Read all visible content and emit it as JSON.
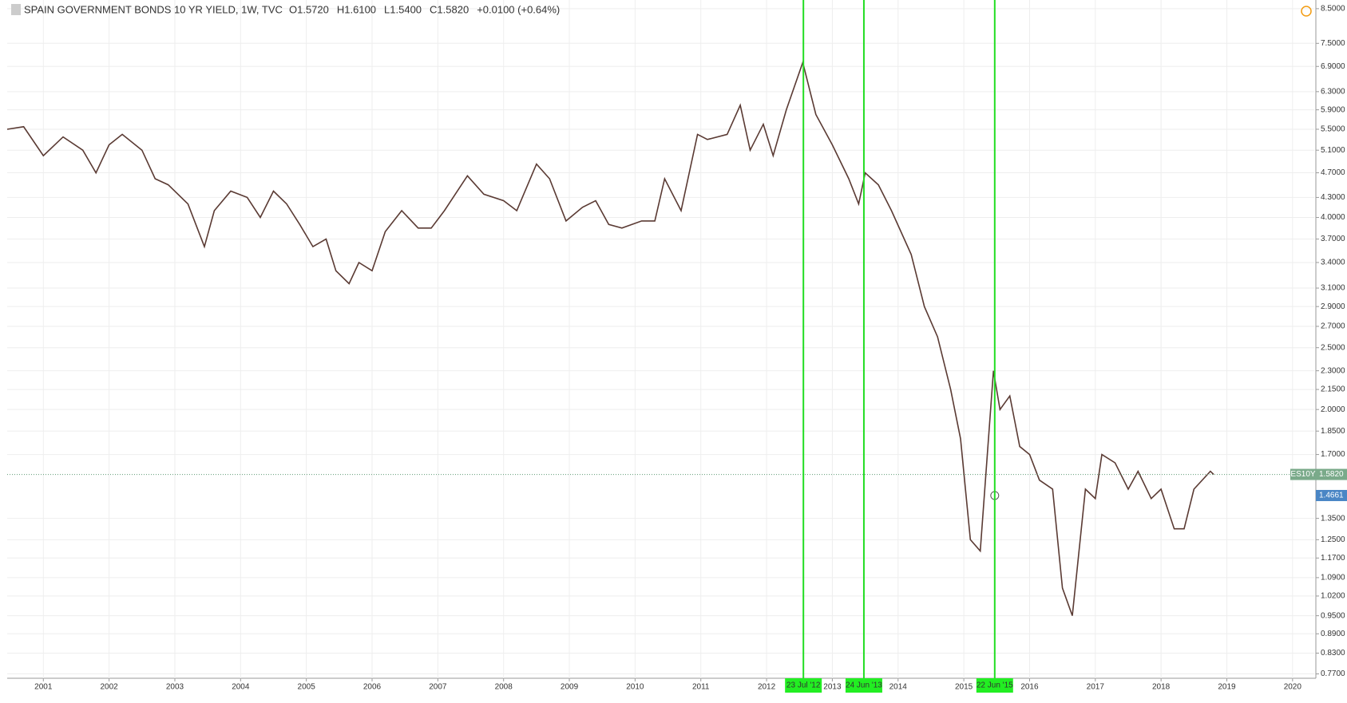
{
  "chart_data": {
    "type": "line",
    "title": "SPAIN GOVERNMENT BONDS 10 YR YIELD, 1W, TVC",
    "ohlc": [
      "O1.5720",
      "H1.6100",
      "L1.5400",
      "C1.5820",
      "+0.0100 (+0.64%)"
    ],
    "log_scale": true,
    "grid": true,
    "x": [
      2000.45,
      2000.7,
      2001.0,
      2001.3,
      2001.6,
      2001.8,
      2002.0,
      2002.2,
      2002.5,
      2002.7,
      2002.9,
      2003.2,
      2003.45,
      2003.6,
      2003.85,
      2004.1,
      2004.3,
      2004.5,
      2004.7,
      2004.9,
      2005.1,
      2005.3,
      2005.45,
      2005.65,
      2005.8,
      2006.0,
      2006.2,
      2006.45,
      2006.7,
      2006.9,
      2007.1,
      2007.45,
      2007.7,
      2008.0,
      2008.2,
      2008.5,
      2008.7,
      2008.95,
      2009.2,
      2009.4,
      2009.6,
      2009.8,
      2010.1,
      2010.3,
      2010.45,
      2010.7,
      2010.95,
      2011.1,
      2011.4,
      2011.6,
      2011.75,
      2011.95,
      2012.1,
      2012.3,
      2012.55,
      2012.75,
      2013.0,
      2013.25,
      2013.4,
      2013.5,
      2013.7,
      2013.9,
      2014.2,
      2014.4,
      2014.6,
      2014.8,
      2014.95,
      2015.1,
      2015.25,
      2015.45,
      2015.55,
      2015.7,
      2015.85,
      2016.0,
      2016.15,
      2016.35,
      2016.5,
      2016.65,
      2016.85,
      2017.0,
      2017.1,
      2017.3,
      2017.5,
      2017.65,
      2017.85,
      2018.0,
      2018.2,
      2018.35,
      2018.5,
      2018.75,
      2018.8
    ],
    "series": [
      {
        "name": "ES10Y",
        "color": "#5a3a33",
        "values": [
          5.5,
          5.55,
          5.0,
          5.35,
          5.1,
          4.7,
          5.2,
          5.4,
          5.1,
          4.6,
          4.5,
          4.2,
          3.6,
          4.1,
          4.4,
          4.3,
          4.0,
          4.4,
          4.2,
          3.9,
          3.6,
          3.7,
          3.3,
          3.15,
          3.4,
          3.3,
          3.8,
          4.1,
          3.85,
          3.85,
          4.1,
          4.65,
          4.35,
          4.25,
          4.1,
          4.85,
          4.6,
          3.95,
          4.15,
          4.25,
          3.9,
          3.85,
          3.95,
          3.95,
          4.6,
          4.1,
          5.4,
          5.3,
          5.4,
          6.0,
          5.1,
          5.6,
          5.0,
          5.9,
          7.0,
          5.8,
          5.2,
          4.6,
          4.2,
          4.7,
          4.5,
          4.1,
          3.5,
          2.9,
          2.6,
          2.15,
          1.8,
          1.25,
          1.2,
          2.3,
          2.0,
          2.1,
          1.75,
          1.7,
          1.55,
          1.5,
          1.05,
          0.95,
          1.5,
          1.45,
          1.7,
          1.65,
          1.5,
          1.6,
          1.45,
          1.5,
          1.3,
          1.3,
          1.5,
          1.6,
          1.582
        ]
      }
    ],
    "xlim": [
      2000.45,
      2020.33
    ],
    "xticks": [
      2001,
      2002,
      2003,
      2004,
      2005,
      2006,
      2007,
      2008,
      2009,
      2010,
      2011,
      2012,
      2013,
      2014,
      2015,
      2016,
      2017,
      2018,
      2019,
      2020
    ],
    "ylim": [
      0.758,
      8.77
    ],
    "yticks": [
      {
        "value": 8.5,
        "label": "8.5000"
      },
      {
        "value": 7.5,
        "label": "7.5000"
      },
      {
        "value": 6.9,
        "label": "6.9000"
      },
      {
        "value": 6.3,
        "label": "6.3000"
      },
      {
        "value": 5.9,
        "label": "5.9000"
      },
      {
        "value": 5.5,
        "label": "5.5000"
      },
      {
        "value": 5.1,
        "label": "5.1000"
      },
      {
        "value": 4.7,
        "label": "4.7000"
      },
      {
        "value": 4.3,
        "label": "4.3000"
      },
      {
        "value": 4.0,
        "label": "4.0000"
      },
      {
        "value": 3.7,
        "label": "3.7000"
      },
      {
        "value": 3.4,
        "label": "3.4000"
      },
      {
        "value": 3.1,
        "label": "3.1000"
      },
      {
        "value": 2.9,
        "label": "2.9000"
      },
      {
        "value": 2.7,
        "label": "2.7000"
      },
      {
        "value": 2.5,
        "label": "2.5000"
      },
      {
        "value": 2.3,
        "label": "2.3000"
      },
      {
        "value": 2.15,
        "label": "2.1500"
      },
      {
        "value": 2.0,
        "label": "2.0000"
      },
      {
        "value": 1.85,
        "label": "1.8500"
      },
      {
        "value": 1.7,
        "label": "1.7000"
      },
      {
        "value": 1.35,
        "label": "1.3500"
      },
      {
        "value": 1.25,
        "label": "1.2500"
      },
      {
        "value": 1.17,
        "label": "1.1700"
      },
      {
        "value": 1.09,
        "label": "1.0900"
      },
      {
        "value": 1.02,
        "label": "1.0200"
      },
      {
        "value": 0.95,
        "label": "0.9500"
      },
      {
        "value": 0.89,
        "label": "0.8900"
      },
      {
        "value": 0.83,
        "label": "0.8300"
      },
      {
        "value": 0.77,
        "label": "0.7700"
      }
    ],
    "markers": [
      {
        "x": 2012.56,
        "label": "23 Jul '12"
      },
      {
        "x": 2013.48,
        "label": "24 Jun '13"
      },
      {
        "x": 2015.47,
        "label": "22 Jun '15"
      }
    ],
    "last_price": {
      "symbol": "ES10Y",
      "value": 1.582,
      "label": "1.5820"
    },
    "crosshair": {
      "x": 2015.47,
      "value": 1.4661,
      "label": "1.4661"
    }
  }
}
